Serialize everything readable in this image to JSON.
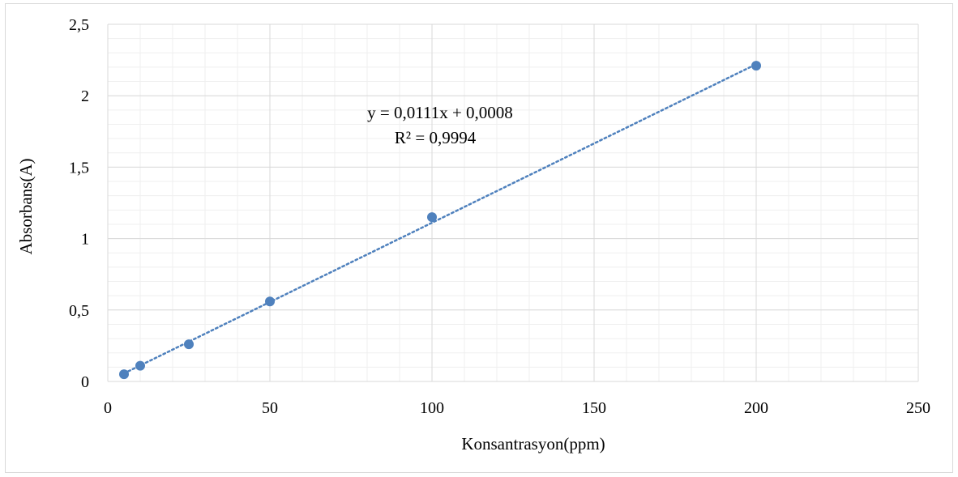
{
  "chart_data": {
    "type": "scatter",
    "xlabel": "Konsantrasyon(ppm)",
    "ylabel": "Absorbans(A)",
    "xlim": [
      0,
      250
    ],
    "ylim": [
      0,
      2.5
    ],
    "x_ticks": [
      "0",
      "50",
      "100",
      "150",
      "200",
      "250"
    ],
    "y_ticks": [
      "0",
      "0,5",
      "1",
      "1,5",
      "2",
      "2,5"
    ],
    "grid": true,
    "legend": "none",
    "series": [
      {
        "x": [
          5,
          10,
          25,
          50,
          100,
          200
        ],
        "y": [
          0.05,
          0.11,
          0.26,
          0.56,
          1.15,
          2.21
        ],
        "color": "#4f81bd"
      }
    ],
    "trendline": {
      "type": "linear",
      "slope": 0.0111,
      "intercept": 0.0008,
      "style": "dotted",
      "color": "#4f81bd",
      "equation_label": "y = 0,0111x + 0,0008",
      "r2_label": "R² = 0,9994"
    }
  }
}
